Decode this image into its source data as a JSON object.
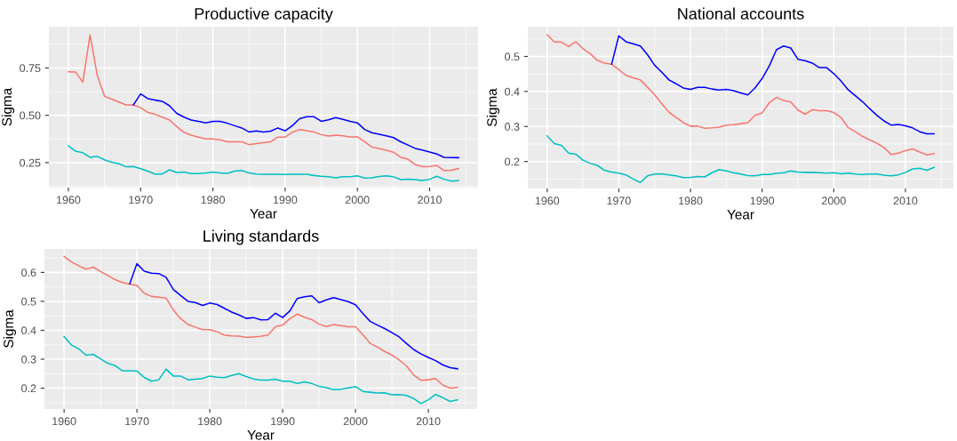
{
  "chart_data": [
    {
      "type": "line",
      "title": "Productive capacity",
      "xlabel": "Year",
      "ylabel": "Sigma",
      "grid": true,
      "xlim": [
        1957.3,
        2016.7
      ],
      "xticks": [
        1960,
        1970,
        1980,
        1990,
        2000,
        2010
      ],
      "ylim": [
        0.118,
        0.968
      ],
      "yticks": [
        {
          "value": 0.25,
          "label": "0.25"
        },
        {
          "value": 0.5,
          "label": "0.50"
        },
        {
          "value": 0.75,
          "label": "0.75"
        }
      ],
      "x": [
        1960,
        1961,
        1962,
        1963,
        1964,
        1965,
        1966,
        1967,
        1968,
        1969,
        1970,
        1971,
        1972,
        1973,
        1974,
        1975,
        1976,
        1977,
        1978,
        1979,
        1980,
        1981,
        1982,
        1983,
        1984,
        1985,
        1986,
        1987,
        1988,
        1989,
        1990,
        1991,
        1992,
        1993,
        1994,
        1995,
        1996,
        1997,
        1998,
        1999,
        2000,
        2001,
        2002,
        2003,
        2004,
        2005,
        2006,
        2007,
        2008,
        2009,
        2010,
        2011,
        2012,
        2013,
        2014
      ],
      "series": [
        {
          "color": "#f8766d",
          "values": [
            0.73,
            0.728,
            0.675,
            0.925,
            0.71,
            0.6,
            0.585,
            0.57,
            0.555,
            0.555,
            0.54,
            0.515,
            0.505,
            0.49,
            0.475,
            0.44,
            0.41,
            0.395,
            0.385,
            0.375,
            0.375,
            0.37,
            0.36,
            0.36,
            0.36,
            0.345,
            0.35,
            0.355,
            0.36,
            0.385,
            0.385,
            0.41,
            0.425,
            0.418,
            0.412,
            0.398,
            0.39,
            0.395,
            0.392,
            0.386,
            0.386,
            0.36,
            0.332,
            0.325,
            0.315,
            0.305,
            0.278,
            0.268,
            0.24,
            0.228,
            0.23,
            0.235,
            0.208,
            0.21,
            0.218
          ]
        },
        {
          "color": "#0000ff",
          "values": [
            null,
            null,
            null,
            null,
            null,
            null,
            null,
            null,
            null,
            0.555,
            0.613,
            0.588,
            0.58,
            0.574,
            0.55,
            0.51,
            0.49,
            0.475,
            0.468,
            0.46,
            0.468,
            0.468,
            0.458,
            0.445,
            0.433,
            0.412,
            0.417,
            0.412,
            0.416,
            0.433,
            0.418,
            0.445,
            0.482,
            0.492,
            0.492,
            0.468,
            0.476,
            0.488,
            0.478,
            0.468,
            0.46,
            0.425,
            0.408,
            0.4,
            0.392,
            0.382,
            0.36,
            0.343,
            0.325,
            0.316,
            0.306,
            0.295,
            0.278,
            0.277,
            0.276
          ]
        },
        {
          "color": "#00bfc4",
          "values": [
            0.338,
            0.31,
            0.302,
            0.278,
            0.283,
            0.265,
            0.252,
            0.245,
            0.228,
            0.23,
            0.218,
            0.205,
            0.19,
            0.19,
            0.212,
            0.198,
            0.2,
            0.192,
            0.192,
            0.195,
            0.2,
            0.195,
            0.193,
            0.205,
            0.208,
            0.195,
            0.19,
            0.188,
            0.188,
            0.188,
            0.187,
            0.188,
            0.188,
            0.188,
            0.182,
            0.178,
            0.175,
            0.17,
            0.176,
            0.176,
            0.18,
            0.168,
            0.17,
            0.177,
            0.18,
            0.175,
            0.16,
            0.163,
            0.16,
            0.155,
            0.162,
            0.178,
            0.162,
            0.152,
            0.155
          ]
        }
      ]
    },
    {
      "type": "line",
      "title": "National accounts",
      "xlabel": "Year",
      "ylabel": "Sigma",
      "grid": true,
      "xlim": [
        1957.3,
        2016.7
      ],
      "xticks": [
        1960,
        1970,
        1980,
        1990,
        2000,
        2010
      ],
      "ylim": [
        0.123,
        0.585
      ],
      "yticks": [
        0.2,
        0.3,
        0.4,
        0.5
      ],
      "x": [
        1960,
        1961,
        1962,
        1963,
        1964,
        1965,
        1966,
        1967,
        1968,
        1969,
        1970,
        1971,
        1972,
        1973,
        1974,
        1975,
        1976,
        1977,
        1978,
        1979,
        1980,
        1981,
        1982,
        1983,
        1984,
        1985,
        1986,
        1987,
        1988,
        1989,
        1990,
        1991,
        1992,
        1993,
        1994,
        1995,
        1996,
        1997,
        1998,
        1999,
        2000,
        2001,
        2002,
        2003,
        2004,
        2005,
        2006,
        2007,
        2008,
        2009,
        2010,
        2011,
        2012,
        2013,
        2014
      ],
      "series": [
        {
          "color": "#f8766d",
          "values": [
            0.562,
            0.541,
            0.541,
            0.528,
            0.542,
            0.522,
            0.508,
            0.489,
            0.481,
            0.478,
            0.462,
            0.446,
            0.439,
            0.433,
            0.412,
            0.391,
            0.365,
            0.341,
            0.326,
            0.311,
            0.301,
            0.301,
            0.295,
            0.296,
            0.298,
            0.304,
            0.305,
            0.308,
            0.311,
            0.332,
            0.339,
            0.368,
            0.383,
            0.374,
            0.37,
            0.347,
            0.335,
            0.348,
            0.345,
            0.345,
            0.34,
            0.326,
            0.297,
            0.285,
            0.272,
            0.262,
            0.252,
            0.24,
            0.22,
            0.224,
            0.231,
            0.236,
            0.227,
            0.219,
            0.223
          ]
        },
        {
          "color": "#0000ff",
          "values": [
            null,
            null,
            null,
            null,
            null,
            null,
            null,
            null,
            null,
            0.478,
            0.559,
            0.542,
            0.536,
            0.53,
            0.505,
            0.475,
            0.455,
            0.433,
            0.422,
            0.41,
            0.406,
            0.412,
            0.412,
            0.407,
            0.404,
            0.406,
            0.402,
            0.396,
            0.39,
            0.41,
            0.437,
            0.473,
            0.519,
            0.53,
            0.524,
            0.492,
            0.488,
            0.481,
            0.468,
            0.468,
            0.451,
            0.43,
            0.405,
            0.388,
            0.371,
            0.351,
            0.332,
            0.316,
            0.304,
            0.306,
            0.302,
            0.296,
            0.285,
            0.279,
            0.279
          ]
        },
        {
          "color": "#00bfc4",
          "values": [
            0.273,
            0.251,
            0.246,
            0.224,
            0.221,
            0.204,
            0.195,
            0.189,
            0.175,
            0.17,
            0.167,
            0.162,
            0.15,
            0.14,
            0.159,
            0.164,
            0.165,
            0.162,
            0.159,
            0.154,
            0.155,
            0.157,
            0.156,
            0.168,
            0.177,
            0.173,
            0.168,
            0.164,
            0.16,
            0.159,
            0.163,
            0.163,
            0.166,
            0.168,
            0.173,
            0.17,
            0.169,
            0.169,
            0.168,
            0.167,
            0.168,
            0.165,
            0.167,
            0.164,
            0.163,
            0.164,
            0.164,
            0.161,
            0.159,
            0.162,
            0.169,
            0.179,
            0.181,
            0.175,
            0.183
          ]
        }
      ]
    },
    {
      "type": "line",
      "title": "Living standards",
      "xlabel": "Year",
      "ylabel": "Sigma",
      "grid": true,
      "xlim": [
        1957.3,
        2016.7
      ],
      "xticks": [
        1960,
        1970,
        1980,
        1990,
        2000,
        2010
      ],
      "ylim": [
        0.128,
        0.681
      ],
      "yticks": [
        0.2,
        0.3,
        0.4,
        0.5,
        0.6
      ],
      "x": [
        1960,
        1961,
        1962,
        1963,
        1964,
        1965,
        1966,
        1967,
        1968,
        1969,
        1970,
        1971,
        1972,
        1973,
        1974,
        1975,
        1976,
        1977,
        1978,
        1979,
        1980,
        1981,
        1982,
        1983,
        1984,
        1985,
        1986,
        1987,
        1988,
        1989,
        1990,
        1991,
        1992,
        1993,
        1994,
        1995,
        1996,
        1997,
        1998,
        1999,
        2000,
        2001,
        2002,
        2003,
        2004,
        2005,
        2006,
        2007,
        2008,
        2009,
        2010,
        2011,
        2012,
        2013,
        2014
      ],
      "series": [
        {
          "color": "#f8766d",
          "values": [
            0.655,
            0.636,
            0.623,
            0.611,
            0.618,
            0.603,
            0.589,
            0.575,
            0.565,
            0.56,
            0.555,
            0.528,
            0.517,
            0.514,
            0.511,
            0.47,
            0.44,
            0.42,
            0.411,
            0.402,
            0.402,
            0.395,
            0.383,
            0.381,
            0.38,
            0.375,
            0.377,
            0.379,
            0.384,
            0.412,
            0.418,
            0.44,
            0.456,
            0.445,
            0.437,
            0.421,
            0.413,
            0.42,
            0.416,
            0.412,
            0.412,
            0.385,
            0.355,
            0.342,
            0.327,
            0.314,
            0.297,
            0.277,
            0.245,
            0.227,
            0.229,
            0.233,
            0.21,
            0.2,
            0.203
          ]
        },
        {
          "color": "#0000ff",
          "values": [
            null,
            null,
            null,
            null,
            null,
            null,
            null,
            null,
            null,
            0.56,
            0.63,
            0.604,
            0.597,
            0.596,
            0.583,
            0.541,
            0.52,
            0.5,
            0.496,
            0.486,
            0.494,
            0.489,
            0.476,
            0.463,
            0.453,
            0.441,
            0.444,
            0.436,
            0.437,
            0.459,
            0.444,
            0.467,
            0.51,
            0.516,
            0.519,
            0.495,
            0.505,
            0.513,
            0.506,
            0.499,
            0.488,
            0.458,
            0.431,
            0.418,
            0.406,
            0.392,
            0.377,
            0.354,
            0.333,
            0.318,
            0.306,
            0.295,
            0.28,
            0.271,
            0.267
          ]
        },
        {
          "color": "#00bfc4",
          "values": [
            0.378,
            0.349,
            0.336,
            0.314,
            0.317,
            0.301,
            0.286,
            0.278,
            0.26,
            0.26,
            0.259,
            0.237,
            0.224,
            0.229,
            0.266,
            0.242,
            0.242,
            0.229,
            0.231,
            0.233,
            0.242,
            0.238,
            0.236,
            0.244,
            0.25,
            0.24,
            0.232,
            0.228,
            0.228,
            0.231,
            0.224,
            0.224,
            0.216,
            0.222,
            0.216,
            0.206,
            0.202,
            0.195,
            0.196,
            0.201,
            0.205,
            0.189,
            0.186,
            0.183,
            0.184,
            0.177,
            0.178,
            0.175,
            0.164,
            0.147,
            0.16,
            0.178,
            0.167,
            0.154,
            0.16
          ]
        }
      ]
    }
  ]
}
